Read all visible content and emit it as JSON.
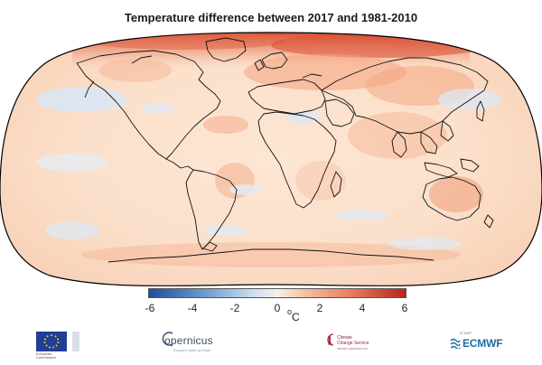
{
  "title": "Temperature difference between 2017 and 1981-2010",
  "colorbar": {
    "ticks": [
      "-6",
      "-4",
      "-2",
      "0",
      "2",
      "4",
      "6"
    ],
    "tick_values": [
      -6,
      -4,
      -2,
      0,
      2,
      4,
      6
    ],
    "unit_superscript": "o",
    "unit": "C",
    "min": -6,
    "max": 6,
    "cold_color": "#1f4e9c",
    "neutral_color": "#f4f1ea",
    "warm_color": "#b5271d"
  },
  "logos": {
    "eu_caption": "European Commission",
    "copernicus": "opernicus",
    "copernicus_sub": "Europe's eyes on Earth",
    "c3s_line1": "Climate",
    "c3s_line2": "Change Service",
    "c3s_sub": "climate.copernicus.eu",
    "ecmwf": "ECMWF",
    "ecmwf_small": "ECMWF"
  }
}
